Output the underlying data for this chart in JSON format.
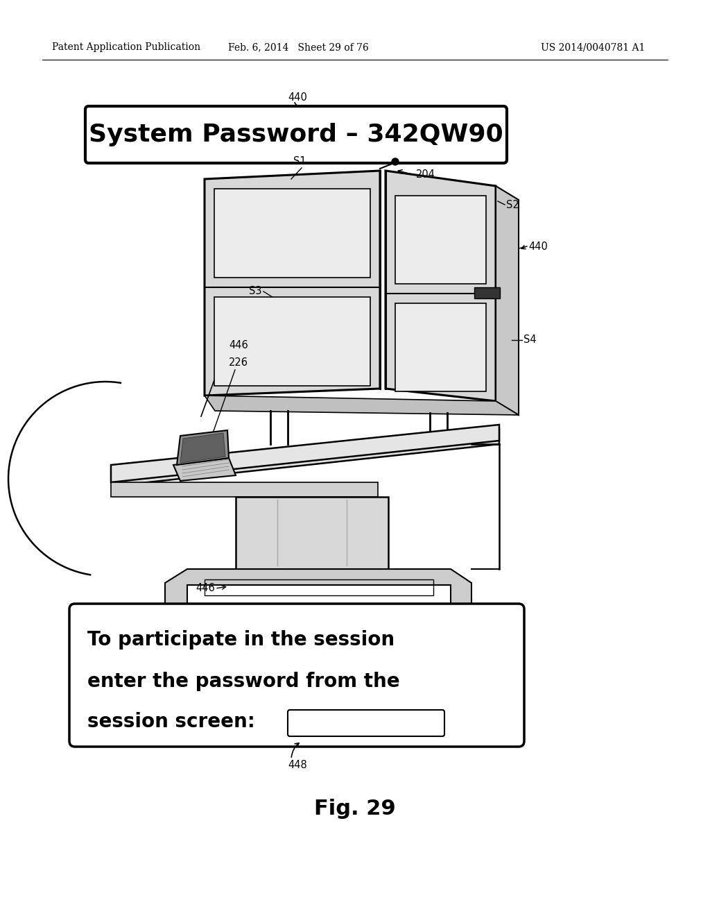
{
  "background_color": "#ffffff",
  "header_left": "Patent Application Publication",
  "header_middle": "Feb. 6, 2014   Sheet 29 of 76",
  "header_right": "US 2014/0040781 A1",
  "title_box_text": "System Password – 342QW90",
  "label_440_top": "440",
  "label_s1": "S1",
  "label_s2": "S2",
  "label_s3": "S3",
  "label_s4": "S4",
  "label_204": "204",
  "label_440_right": "440",
  "label_446_top": "446",
  "label_226": "226",
  "label_446_bottom": "446",
  "label_448": "448",
  "bottom_box_line1": "To participate in the session",
  "bottom_box_line2": "enter the password from the",
  "bottom_box_line3": "session screen:",
  "fig_label": "Fig. 29"
}
